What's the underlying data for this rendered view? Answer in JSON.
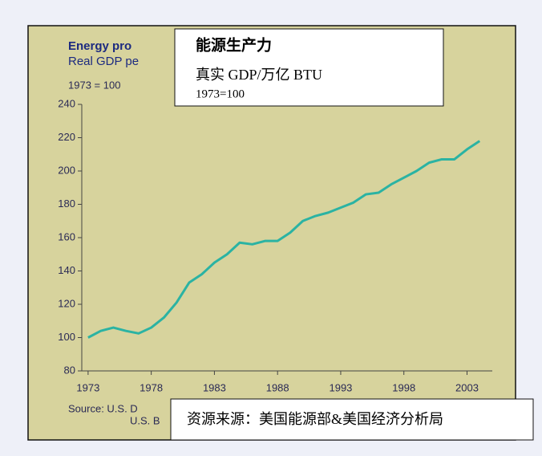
{
  "chart_data": {
    "type": "line",
    "title": "Energy pro",
    "subtitle": "Real GDP pe",
    "note": "1973 = 100",
    "source": [
      "Source: U.S. D",
      "U.S. B"
    ],
    "overlay_title": "能源生产力",
    "overlay_subtitle": "真实 GDP/万亿 BTU",
    "overlay_note": "1973=100",
    "overlay_source": "资源来源：美国能源部&美国经济分析局",
    "x": [
      1973,
      1974,
      1975,
      1976,
      1977,
      1978,
      1979,
      1980,
      1981,
      1982,
      1983,
      1984,
      1985,
      1986,
      1987,
      1988,
      1989,
      1990,
      1991,
      1992,
      1993,
      1994,
      1995,
      1996,
      1997,
      1998,
      1999,
      2000,
      2001,
      2002,
      2003,
      2004
    ],
    "series": [
      {
        "name": "Energy productivity",
        "color": "#2bb3a3",
        "values": [
          100,
          104,
          106,
          104,
          102.5,
          106,
          112,
          121,
          133,
          138,
          145,
          150,
          157,
          156,
          158,
          158,
          163,
          170,
          173,
          175,
          178,
          181,
          186,
          187,
          192,
          196,
          200,
          205,
          207,
          207,
          213,
          218
        ]
      }
    ],
    "xlim": [
      1972.5,
      2005
    ],
    "xticks": [
      1973,
      1978,
      1983,
      1988,
      1993,
      1998,
      2003
    ],
    "ylim": [
      80,
      240
    ],
    "yticks": [
      80,
      100,
      120,
      140,
      160,
      180,
      200,
      220,
      240
    ],
    "grid": false
  }
}
